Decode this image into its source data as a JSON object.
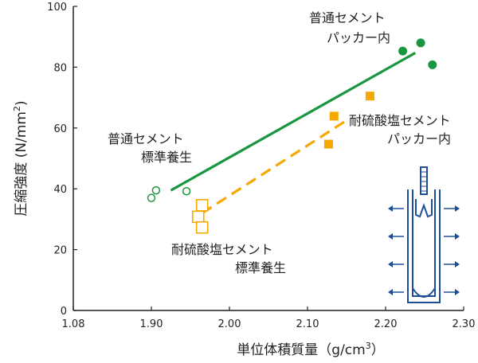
{
  "chart_data": {
    "type": "scatter",
    "title": "",
    "xlabel": "単位体積質量（g/cm",
    "xlabel_sup": "3",
    "xlabel_end": "）",
    "ylabel": "圧縮強度 (N/mm",
    "ylabel_sup": "2",
    "ylabel_end": ")",
    "xlim": [
      1.08,
      2.3
    ],
    "ylim": [
      0,
      100
    ],
    "x_ticks": [
      1.08,
      1.9,
      2.0,
      2.1,
      2.2,
      2.3
    ],
    "x_tick_labels": [
      "1.08",
      "1.90",
      "2.00",
      "2.10",
      "2.20",
      "2.30"
    ],
    "y_ticks": [
      0,
      20,
      40,
      60,
      80,
      100
    ],
    "y_tick_labels": [
      "0",
      "20",
      "40",
      "60",
      "80",
      "100"
    ],
    "grid": false,
    "series": [
      {
        "name": "普通セメント\nパッカー内",
        "marker": "circle",
        "filled": true,
        "color": "#1a9641",
        "points": [
          [
            2.222,
            85.3
          ],
          [
            2.245,
            88.0
          ],
          [
            2.26,
            80.8
          ]
        ]
      },
      {
        "name": "普通セメント\n標準養生",
        "marker": "circle",
        "filled": false,
        "color": "#1a9641",
        "points": [
          [
            1.9,
            37.0
          ],
          [
            1.906,
            39.5
          ],
          [
            1.945,
            39.2
          ]
        ]
      },
      {
        "name": "耐硫酸塩セメント\nパッカー内",
        "marker": "square",
        "filled": true,
        "color": "#f5a800",
        "points": [
          [
            2.127,
            54.7
          ],
          [
            2.134,
            63.9
          ],
          [
            2.18,
            70.5
          ]
        ]
      },
      {
        "name": "耐硫酸塩セメント\n標準養生",
        "marker": "square",
        "filled": false,
        "color": "#f5a800",
        "points": [
          [
            1.965,
            34.6
          ],
          [
            1.96,
            30.8
          ],
          [
            1.965,
            27.3
          ]
        ]
      }
    ],
    "trendlines": [
      {
        "color": "#1a9641",
        "dashed": false,
        "from": [
          1.925,
          39.5
        ],
        "to": [
          2.238,
          84.7
        ]
      },
      {
        "color": "#f5a800",
        "dashed": true,
        "from": [
          1.965,
          32.0
        ],
        "to": [
          2.153,
          63.0
        ]
      }
    ],
    "annotations": [
      {
        "text": "普通セメント",
        "anchor": "normal-packer-line1"
      },
      {
        "text": "パッカー内",
        "anchor": "normal-packer-line2"
      },
      {
        "text": "普通セメント",
        "anchor": "normal-std-line1"
      },
      {
        "text": "標準養生",
        "anchor": "normal-std-line2"
      },
      {
        "text": "耐硫酸塩セメント",
        "anchor": "sulfate-packer-line1"
      },
      {
        "text": "パッカー内",
        "anchor": "sulfate-packer-line2"
      },
      {
        "text": "耐硫酸塩セメント",
        "anchor": "sulfate-std-line1"
      },
      {
        "text": "標準養生",
        "anchor": "sulfate-std-line2"
      }
    ],
    "inset_icon": "packer-diagram-icon"
  },
  "colors": {
    "axis": "#222222",
    "green": "#1a9641",
    "orange": "#f5a800",
    "blue": "#1f4e99"
  }
}
